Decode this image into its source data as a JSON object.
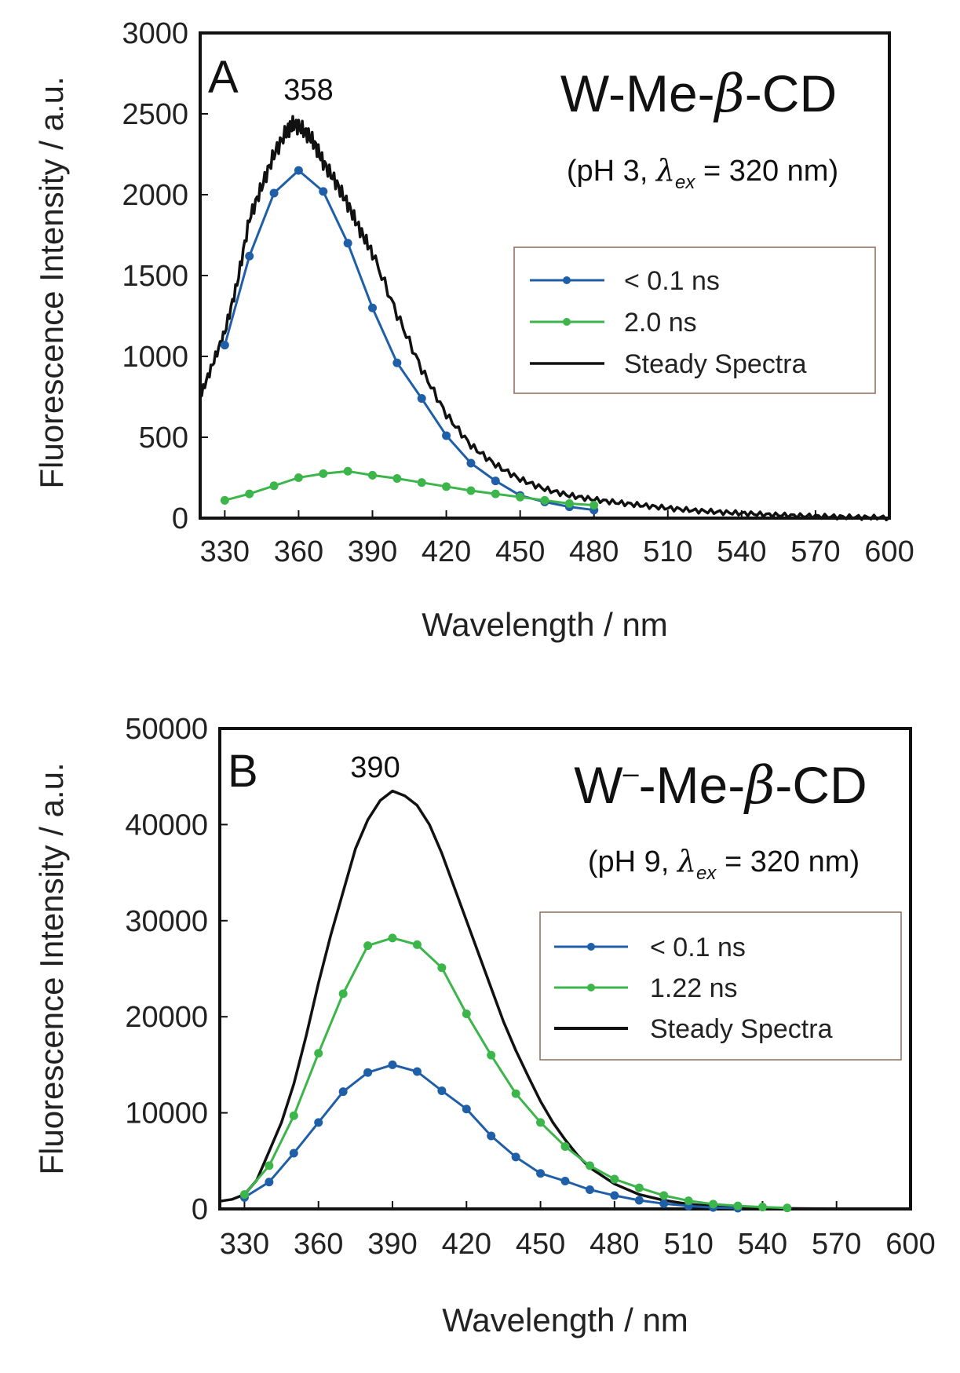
{
  "chart_data": [
    {
      "type": "line",
      "panel_label": "A",
      "title_parts": {
        "prefix": "W-Me-",
        "greek": "β",
        "suffix": "-CD"
      },
      "subtitle_parts": {
        "open": "(pH 3, ",
        "lambda": "λ",
        "sub": "ex",
        "close": " = 320 nm)"
      },
      "peak_label": "358",
      "peak_x": 358,
      "xlabel": "Wavelength / nm",
      "ylabel": "Fluorescence Intensity / a.u.",
      "xlim": [
        320,
        600
      ],
      "ylim": [
        0,
        3000
      ],
      "xticks": [
        330,
        360,
        390,
        420,
        450,
        480,
        510,
        540,
        570,
        600
      ],
      "yticks": [
        0,
        500,
        1000,
        1500,
        2000,
        2500,
        3000
      ],
      "legend_position": "center-right",
      "series": [
        {
          "name": "< 0.1 ns",
          "color": "#1f5fa8",
          "markers": true,
          "x": [
            330,
            340,
            350,
            360,
            370,
            380,
            390,
            400,
            410,
            420,
            430,
            440,
            450,
            460,
            470,
            480
          ],
          "y": [
            1070,
            1620,
            2010,
            2150,
            2020,
            1700,
            1300,
            960,
            740,
            510,
            340,
            230,
            140,
            100,
            70,
            50
          ]
        },
        {
          "name": "2.0 ns",
          "color": "#3cb54a",
          "markers": true,
          "x": [
            330,
            340,
            350,
            360,
            370,
            380,
            390,
            400,
            410,
            420,
            430,
            440,
            450,
            460,
            470,
            480
          ],
          "y": [
            110,
            150,
            200,
            250,
            275,
            290,
            265,
            245,
            220,
            195,
            170,
            150,
            130,
            110,
            90,
            80
          ]
        },
        {
          "name": "Steady Spectra",
          "color": "#111111",
          "markers": false,
          "x": [
            320,
            325,
            330,
            335,
            340,
            345,
            350,
            355,
            358,
            362,
            366,
            370,
            375,
            380,
            385,
            390,
            400,
            410,
            420,
            430,
            440,
            450,
            460,
            470,
            480,
            490,
            500,
            510,
            520,
            530,
            540,
            550,
            560,
            570,
            580,
            590,
            600
          ],
          "y": [
            750,
            950,
            1150,
            1450,
            1850,
            2050,
            2250,
            2390,
            2440,
            2400,
            2330,
            2200,
            2080,
            1940,
            1780,
            1640,
            1260,
            920,
            640,
            450,
            330,
            240,
            180,
            140,
            115,
            95,
            78,
            62,
            48,
            38,
            30,
            22,
            16,
            12,
            8,
            5,
            3
          ]
        }
      ]
    },
    {
      "type": "line",
      "panel_label": "B",
      "title_parts": {
        "prefix": "W",
        "superscript": "–",
        "middle": "-Me-",
        "greek": "β",
        "suffix": "-CD"
      },
      "subtitle_parts": {
        "open": "(pH 9, ",
        "lambda": "λ",
        "sub": "ex",
        "close": " = 320 nm)"
      },
      "peak_label": "390",
      "peak_x": 390,
      "xlabel": "Wavelength / nm",
      "ylabel": "Fluorescence Intensity / a.u.",
      "xlim": [
        320,
        600
      ],
      "ylim": [
        0,
        50000
      ],
      "xticks": [
        330,
        360,
        390,
        420,
        450,
        480,
        510,
        540,
        570,
        600
      ],
      "yticks": [
        0,
        10000,
        20000,
        30000,
        40000,
        50000
      ],
      "legend_position": "center-right",
      "series": [
        {
          "name": "< 0.1 ns",
          "color": "#1f5fa8",
          "markers": true,
          "x": [
            330,
            340,
            350,
            360,
            370,
            380,
            390,
            400,
            410,
            420,
            430,
            440,
            450,
            460,
            470,
            480,
            490,
            500,
            510,
            520,
            530
          ],
          "y": [
            1200,
            2800,
            5800,
            9000,
            12200,
            14200,
            15000,
            14300,
            12300,
            10400,
            7600,
            5400,
            3700,
            2900,
            2000,
            1400,
            900,
            550,
            300,
            150,
            80
          ]
        },
        {
          "name": "1.22 ns",
          "color": "#3cb54a",
          "markers": true,
          "x": [
            330,
            340,
            350,
            360,
            370,
            380,
            390,
            400,
            410,
            420,
            430,
            440,
            450,
            460,
            470,
            480,
            490,
            500,
            510,
            520,
            530,
            540,
            550
          ],
          "y": [
            1500,
            4500,
            9700,
            16200,
            22400,
            27400,
            28200,
            27500,
            25100,
            20300,
            16000,
            12000,
            9000,
            6500,
            4500,
            3100,
            2200,
            1400,
            850,
            500,
            320,
            200,
            100
          ]
        },
        {
          "name": "Steady Spectra",
          "color": "#111111",
          "markers": false,
          "x": [
            320,
            325,
            330,
            335,
            340,
            345,
            350,
            355,
            360,
            365,
            370,
            375,
            380,
            385,
            390,
            395,
            400,
            405,
            410,
            415,
            420,
            425,
            430,
            435,
            440,
            445,
            450,
            455,
            460,
            465,
            470,
            480,
            490,
            500,
            510,
            520,
            530,
            540,
            550,
            560,
            570,
            580,
            590,
            600
          ],
          "y": [
            800,
            1000,
            1500,
            3000,
            6000,
            9000,
            13000,
            18000,
            23500,
            28500,
            33000,
            37500,
            40500,
            42500,
            43500,
            43000,
            42000,
            40000,
            37000,
            33500,
            30000,
            26500,
            23000,
            19500,
            16500,
            13800,
            11200,
            9000,
            7200,
            5600,
            4300,
            2600,
            1500,
            900,
            500,
            280,
            160,
            90,
            50,
            30,
            20,
            12,
            7,
            4
          ]
        }
      ]
    }
  ]
}
